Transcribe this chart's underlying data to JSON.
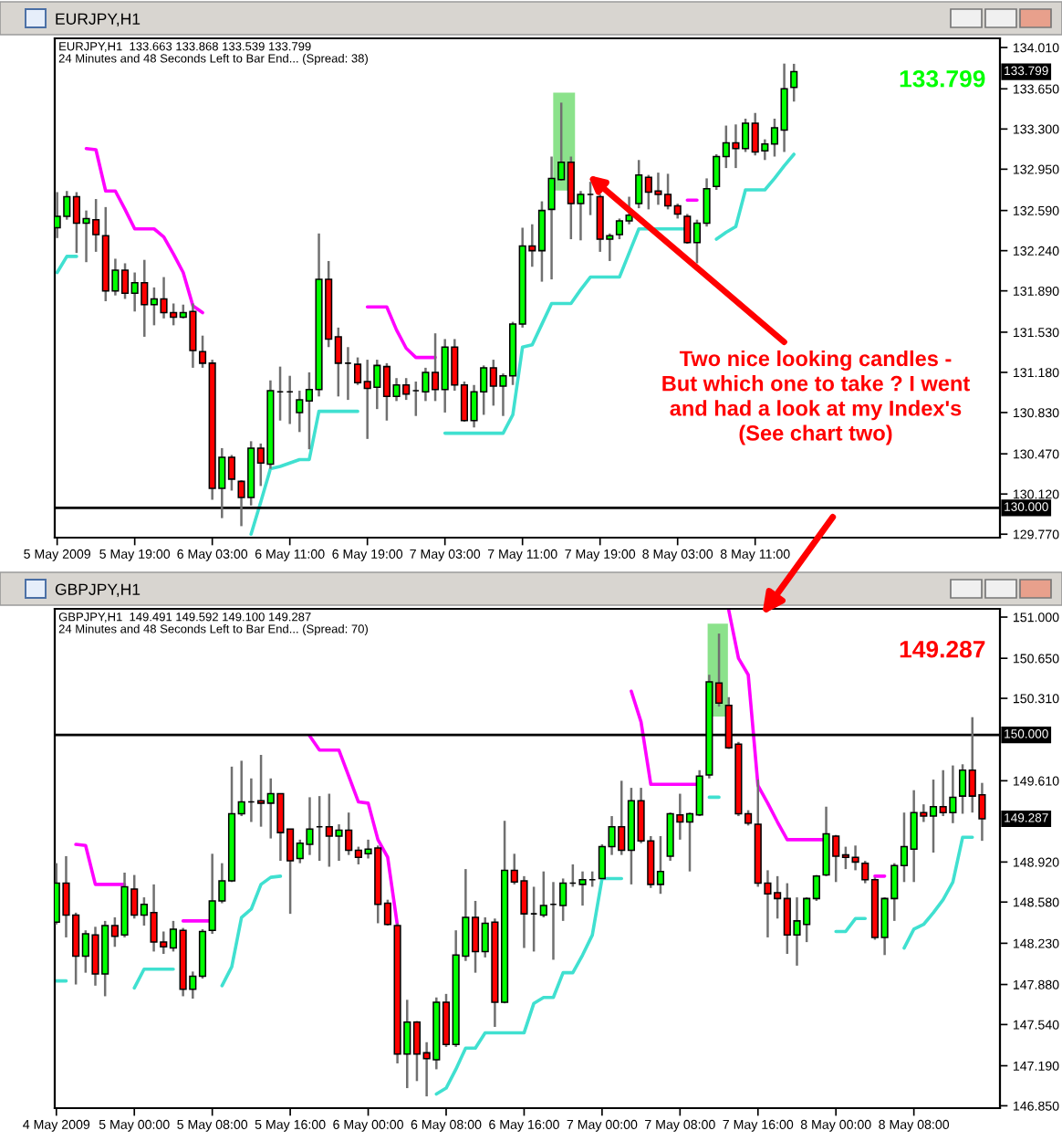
{
  "chart_data": [
    {
      "type": "candlestick",
      "title": "EURJPY,H1",
      "subtitle": "EURJPY,H1  133.663 133.868 133.539 133.799\n24 Minutes and 48 Seconds Left to Bar End... (Spread: 38)",
      "x": [
        "2009-05-05T11:00",
        "2009-05-05T12:00",
        "2009-05-05T13:00",
        "2009-05-05T14:00",
        "2009-05-05T15:00",
        "2009-05-05T16:00",
        "2009-05-05T17:00",
        "2009-05-05T18:00",
        "2009-05-05T19:00",
        "2009-05-05T20:00",
        "2009-05-05T21:00",
        "2009-05-05T22:00",
        "2009-05-05T23:00",
        "2009-05-06T00:00",
        "2009-05-06T01:00",
        "2009-05-06T02:00",
        "2009-05-06T03:00",
        "2009-05-06T04:00",
        "2009-05-06T05:00",
        "2009-05-06T06:00",
        "2009-05-06T07:00",
        "2009-05-06T08:00",
        "2009-05-06T09:00",
        "2009-05-06T10:00",
        "2009-05-06T11:00",
        "2009-05-06T12:00",
        "2009-05-06T13:00",
        "2009-05-06T14:00",
        "2009-05-06T15:00",
        "2009-05-06T16:00",
        "2009-05-06T17:00",
        "2009-05-06T18:00",
        "2009-05-06T19:00",
        "2009-05-06T20:00",
        "2009-05-06T21:00",
        "2009-05-06T22:00",
        "2009-05-06T23:00",
        "2009-05-07T00:00",
        "2009-05-07T01:00",
        "2009-05-07T02:00",
        "2009-05-07T03:00",
        "2009-05-07T04:00",
        "2009-05-07T05:00",
        "2009-05-07T06:00",
        "2009-05-07T07:00",
        "2009-05-07T08:00",
        "2009-05-07T09:00",
        "2009-05-07T10:00",
        "2009-05-07T11:00",
        "2009-05-07T12:00",
        "2009-05-07T13:00",
        "2009-05-07T14:00",
        "2009-05-07T15:00",
        "2009-05-07T16:00",
        "2009-05-07T17:00",
        "2009-05-07T18:00",
        "2009-05-07T19:00",
        "2009-05-07T20:00",
        "2009-05-07T21:00",
        "2009-05-07T22:00",
        "2009-05-07T23:00",
        "2009-05-08T00:00",
        "2009-05-08T01:00",
        "2009-05-08T02:00",
        "2009-05-08T03:00",
        "2009-05-08T04:00",
        "2009-05-08T05:00",
        "2009-05-08T06:00",
        "2009-05-08T07:00",
        "2009-05-08T08:00",
        "2009-05-08T09:00",
        "2009-05-08T10:00",
        "2009-05-08T11:00",
        "2009-05-08T12:00",
        "2009-05-08T13:00",
        "2009-05-08T14:00",
        "2009-05-08T15:00"
      ],
      "ohlc": [
        [
          132.44,
          132.75,
          132.35,
          132.54
        ],
        [
          132.54,
          132.76,
          132.51,
          132.71
        ],
        [
          132.71,
          132.75,
          132.22,
          132.48
        ],
        [
          132.48,
          132.59,
          132.14,
          132.52
        ],
        [
          132.51,
          132.69,
          132.23,
          132.38
        ],
        [
          132.37,
          132.62,
          131.8,
          131.89
        ],
        [
          131.89,
          132.17,
          131.85,
          132.07
        ],
        [
          132.07,
          132.13,
          131.82,
          131.87
        ],
        [
          131.87,
          132.05,
          131.71,
          131.96
        ],
        [
          131.96,
          132.16,
          131.49,
          131.77
        ],
        [
          131.77,
          131.92,
          131.59,
          131.82
        ],
        [
          131.82,
          132.01,
          131.65,
          131.7
        ],
        [
          131.7,
          131.78,
          131.59,
          131.66
        ],
        [
          131.66,
          131.77,
          131.65,
          131.7
        ],
        [
          131.71,
          131.78,
          131.22,
          131.37
        ],
        [
          131.36,
          131.5,
          131.22,
          131.26
        ],
        [
          131.26,
          131.29,
          130.07,
          130.17
        ],
        [
          130.17,
          130.52,
          129.91,
          130.44
        ],
        [
          130.44,
          130.46,
          130.15,
          130.25
        ],
        [
          130.23,
          130.24,
          129.84,
          130.09
        ],
        [
          130.09,
          130.58,
          130.02,
          130.52
        ],
        [
          130.52,
          130.56,
          130.19,
          130.39
        ],
        [
          130.38,
          131.11,
          130.34,
          131.02
        ],
        [
          131.01,
          131.23,
          130.76,
          131.01
        ],
        [
          131.01,
          131.15,
          130.73,
          131.01
        ],
        [
          130.83,
          131.02,
          130.66,
          130.94
        ],
        [
          130.93,
          131.18,
          130.51,
          131.03
        ],
        [
          131.03,
          132.39,
          130.97,
          131.99
        ],
        [
          131.99,
          132.15,
          131.4,
          131.47
        ],
        [
          131.49,
          131.57,
          130.97,
          131.26
        ],
        [
          131.26,
          131.4,
          130.94,
          131.26
        ],
        [
          131.25,
          131.31,
          131.07,
          131.09
        ],
        [
          131.1,
          131.29,
          130.6,
          131.04
        ],
        [
          131.05,
          131.29,
          130.86,
          131.24
        ],
        [
          131.23,
          131.26,
          130.76,
          130.97
        ],
        [
          130.97,
          131.13,
          130.93,
          131.07
        ],
        [
          131.07,
          131.13,
          130.94,
          130.99
        ],
        [
          131.02,
          131.1,
          130.8,
          131.02
        ],
        [
          131.01,
          131.22,
          130.93,
          131.18
        ],
        [
          131.18,
          131.52,
          130.93,
          131.03
        ],
        [
          131.03,
          131.47,
          130.83,
          131.4
        ],
        [
          131.4,
          131.47,
          131.02,
          131.07
        ],
        [
          131.07,
          131.1,
          130.75,
          130.76
        ],
        [
          130.76,
          131.07,
          130.7,
          131.01
        ],
        [
          131.01,
          131.24,
          130.81,
          131.22
        ],
        [
          131.22,
          131.29,
          130.89,
          131.06
        ],
        [
          131.06,
          131.17,
          130.8,
          131.15
        ],
        [
          131.15,
          131.62,
          131.07,
          131.6
        ],
        [
          131.6,
          132.44,
          131.57,
          132.28
        ],
        [
          132.28,
          132.47,
          132.1,
          132.24
        ],
        [
          132.24,
          132.67,
          131.97,
          132.59
        ],
        [
          132.6,
          133.06,
          131.99,
          132.87
        ],
        [
          132.86,
          133.53,
          132.85,
          133.01
        ],
        [
          133.01,
          133.06,
          132.34,
          132.65
        ],
        [
          132.65,
          132.76,
          132.33,
          132.73
        ],
        [
          132.73,
          132.84,
          132.55,
          132.73
        ],
        [
          132.71,
          132.73,
          132.23,
          132.34
        ],
        [
          132.34,
          132.39,
          132.15,
          132.37
        ],
        [
          132.38,
          132.52,
          132.34,
          132.5
        ],
        [
          132.5,
          132.71,
          132.47,
          132.55
        ],
        [
          132.65,
          133.03,
          132.61,
          132.9
        ],
        [
          132.88,
          132.9,
          132.6,
          132.75
        ],
        [
          132.76,
          132.92,
          132.64,
          132.73
        ],
        [
          132.73,
          132.91,
          132.6,
          132.63
        ],
        [
          132.63,
          132.65,
          132.52,
          132.56
        ],
        [
          132.54,
          132.56,
          132.3,
          132.31
        ],
        [
          132.31,
          132.51,
          132.13,
          132.48
        ],
        [
          132.48,
          132.87,
          132.45,
          132.78
        ],
        [
          132.8,
          133.08,
          132.77,
          133.06
        ],
        [
          133.06,
          133.33,
          132.96,
          133.18
        ],
        [
          133.18,
          133.34,
          132.96,
          133.13
        ],
        [
          133.13,
          133.39,
          133.1,
          133.35
        ],
        [
          133.35,
          133.44,
          133.07,
          133.1
        ],
        [
          133.11,
          133.21,
          133.03,
          133.17
        ],
        [
          133.17,
          133.39,
          133.06,
          133.31
        ],
        [
          133.29,
          133.87,
          133.1,
          133.65
        ],
        [
          133.663,
          133.868,
          133.539,
          133.799
        ]
      ],
      "colors": [
        "#00ff00",
        "#00ff00",
        "#ff0000",
        "#00ff00",
        "#ff0000",
        "#ff0000",
        "#00ff00",
        "#ff0000",
        "#00ff00",
        "#ff0000",
        "#00ff00",
        "#ff0000",
        "#ff0000",
        "#00ff00",
        "#ff0000",
        "#ff0000",
        "#ff0000",
        "#00ff00",
        "#ff0000",
        "#ff0000",
        "#00ff00",
        "#ff0000",
        "#00ff00",
        "#000000",
        "#000000",
        "#00ff00",
        "#00ff00",
        "#00ff00",
        "#ff0000",
        "#ff0000",
        "#000000",
        "#ff0000",
        "#ff0000",
        "#00ff00",
        "#ff0000",
        "#00ff00",
        "#ff0000",
        "#000000",
        "#00ff00",
        "#ff0000",
        "#00ff00",
        "#ff0000",
        "#ff0000",
        "#00ff00",
        "#00ff00",
        "#ff0000",
        "#00ff00",
        "#00ff00",
        "#00ff00",
        "#ff0000",
        "#00ff00",
        "#00ff00",
        "#00ff00",
        "#ff0000",
        "#00ff00",
        "#000000",
        "#ff0000",
        "#00ff00",
        "#00ff00",
        "#00ff00",
        "#00ff00",
        "#ff0000",
        "#ff0000",
        "#ff0000",
        "#ff0000",
        "#ff0000",
        "#00ff00",
        "#00ff00",
        "#00ff00",
        "#00ff00",
        "#ff0000",
        "#00ff00",
        "#ff0000",
        "#00ff00",
        "#00ff00",
        "#00ff00",
        "#00ff00"
      ],
      "series": [
        {
          "type": "line",
          "color": "#ff00ff",
          "values": [
            null,
            null,
            null,
            133.13,
            133.12,
            132.76,
            132.76,
            132.6,
            132.43,
            132.43,
            132.43,
            132.36,
            132.21,
            132.05,
            131.76,
            131.7,
            null,
            null,
            null,
            null,
            null,
            null,
            null,
            null,
            null,
            null,
            null,
            null,
            null,
            null,
            null,
            null,
            131.75,
            131.75,
            131.75,
            131.55,
            131.39,
            131.31,
            131.31,
            131.31,
            null,
            null,
            null,
            null,
            null,
            null,
            null,
            null,
            null,
            null,
            null,
            null,
            null,
            null,
            null,
            null,
            null,
            null,
            null,
            null,
            null,
            null,
            null,
            null,
            null,
            132.68,
            132.68,
            null,
            null,
            null,
            null,
            null,
            null,
            null,
            null,
            null,
            null
          ]
        },
        {
          "type": "line",
          "color": "#40e0d0",
          "values": [
            132.05,
            132.19,
            132.19,
            null,
            null,
            null,
            null,
            null,
            null,
            null,
            null,
            null,
            null,
            null,
            null,
            null,
            null,
            null,
            null,
            null,
            129.77,
            130.05,
            130.34,
            130.36,
            130.39,
            130.42,
            130.42,
            130.84,
            130.84,
            130.84,
            130.84,
            130.84,
            null,
            null,
            null,
            null,
            null,
            null,
            null,
            null,
            130.65,
            130.65,
            130.65,
            130.65,
            130.65,
            130.65,
            130.65,
            130.81,
            131.4,
            131.42,
            131.6,
            131.78,
            131.78,
            131.78,
            131.9,
            132.01,
            132.01,
            132.01,
            132.01,
            132.22,
            132.43,
            132.43,
            132.43,
            132.43,
            132.43,
            132.43,
            null,
            null,
            132.34,
            132.4,
            132.45,
            132.77,
            132.77,
            132.77,
            132.87,
            132.98,
            133.08
          ]
        }
      ],
      "xlim": [
        "2009-05-05T10:45",
        "2009-05-09T12:15"
      ],
      "xticks": [
        {
          "value": "2009-05-05T11:00",
          "label": "5 May 2009"
        },
        {
          "value": "2009-05-05T19:00",
          "label": "5 May 19:00"
        },
        {
          "value": "2009-05-06T03:00",
          "label": "6 May 03:00"
        },
        {
          "value": "2009-05-06T11:00",
          "label": "6 May 11:00"
        },
        {
          "value": "2009-05-06T19:00",
          "label": "6 May 19:00"
        },
        {
          "value": "2009-05-07T03:00",
          "label": "7 May 03:00"
        },
        {
          "value": "2009-05-07T11:00",
          "label": "7 May 11:00"
        },
        {
          "value": "2009-05-07T19:00",
          "label": "7 May 19:00"
        },
        {
          "value": "2009-05-08T03:00",
          "label": "8 May 03:00"
        },
        {
          "value": "2009-05-08T11:00",
          "label": "8 May 11:00"
        }
      ],
      "ylim": [
        129.74,
        134.09
      ],
      "yticks": [
        {
          "value": 134.01,
          "label": "134.010"
        },
        {
          "value": 133.65,
          "label": "133.650"
        },
        {
          "value": 133.3,
          "label": "133.300"
        },
        {
          "value": 132.95,
          "label": "132.950"
        },
        {
          "value": 132.59,
          "label": "132.590"
        },
        {
          "value": 132.24,
          "label": "132.240"
        },
        {
          "value": 131.89,
          "label": "131.890"
        },
        {
          "value": 131.53,
          "label": "131.530"
        },
        {
          "value": 131.18,
          "label": "131.180"
        },
        {
          "value": 130.83,
          "label": "130.830"
        },
        {
          "value": 130.47,
          "label": "130.470"
        },
        {
          "value": 130.12,
          "label": "130.120"
        },
        {
          "value": 129.77,
          "label": "129.770"
        }
      ],
      "ref_lines": [
        {
          "axis": "y",
          "value": 130.0,
          "label": "130.000",
          "color": "#000000"
        }
      ],
      "bands": [
        {
          "axis": "x",
          "from": "2009-05-07T14:10",
          "to": "2009-05-07T16:25",
          "color": "#77dd77"
        }
      ],
      "annotations": [
        "133.799",
        "133.799",
        {
          "text": "Two nice looking candles -\nBut which one to take ? I went\nand had a look at my Index's\n(See chart two)",
          "x": "2009-05-07T17:45",
          "y": 132.9
        }
      ]
    },
    {
      "type": "candlestick",
      "title": "GBPJPY,H1",
      "subtitle": "GBPJPY,H1  149.491 149.592 149.100 149.287\n24 Minutes and 48 Seconds Left to Bar End... (Spread: 70)",
      "x": [
        "2009-05-04T16:00",
        "2009-05-04T17:00",
        "2009-05-04T18:00",
        "2009-05-04T19:00",
        "2009-05-04T20:00",
        "2009-05-04T21:00",
        "2009-05-04T22:00",
        "2009-05-04T23:00",
        "2009-05-05T00:00",
        "2009-05-05T01:00",
        "2009-05-05T02:00",
        "2009-05-05T03:00",
        "2009-05-05T04:00",
        "2009-05-05T05:00",
        "2009-05-05T06:00",
        "2009-05-05T07:00",
        "2009-05-05T08:00",
        "2009-05-05T09:00",
        "2009-05-05T10:00",
        "2009-05-05T11:00",
        "2009-05-05T12:00",
        "2009-05-05T13:00",
        "2009-05-05T14:00",
        "2009-05-05T15:00",
        "2009-05-05T16:00",
        "2009-05-05T17:00",
        "2009-05-05T18:00",
        "2009-05-05T19:00",
        "2009-05-05T20:00",
        "2009-05-05T21:00",
        "2009-05-05T22:00",
        "2009-05-05T23:00",
        "2009-05-06T00:00",
        "2009-05-06T01:00",
        "2009-05-06T02:00",
        "2009-05-06T03:00",
        "2009-05-06T04:00",
        "2009-05-06T05:00",
        "2009-05-06T06:00",
        "2009-05-06T07:00",
        "2009-05-06T08:00",
        "2009-05-06T09:00",
        "2009-05-06T10:00",
        "2009-05-06T11:00",
        "2009-05-06T12:00",
        "2009-05-06T13:00",
        "2009-05-06T14:00",
        "2009-05-06T15:00",
        "2009-05-06T16:00",
        "2009-05-06T17:00",
        "2009-05-06T18:00",
        "2009-05-06T19:00",
        "2009-05-06T20:00",
        "2009-05-06T21:00",
        "2009-05-06T22:00",
        "2009-05-06T23:00",
        "2009-05-07T00:00",
        "2009-05-07T01:00",
        "2009-05-07T02:00",
        "2009-05-07T03:00",
        "2009-05-07T04:00",
        "2009-05-07T05:00",
        "2009-05-07T06:00",
        "2009-05-07T07:00",
        "2009-05-07T08:00",
        "2009-05-07T09:00",
        "2009-05-07T10:00",
        "2009-05-07T11:00",
        "2009-05-07T12:00",
        "2009-05-07T13:00",
        "2009-05-07T14:00",
        "2009-05-07T15:00",
        "2009-05-07T16:00",
        "2009-05-07T17:00",
        "2009-05-07T18:00",
        "2009-05-07T19:00",
        "2009-05-07T20:00",
        "2009-05-07T21:00",
        "2009-05-07T22:00",
        "2009-05-07T23:00",
        "2009-05-08T00:00",
        "2009-05-08T01:00",
        "2009-05-08T02:00",
        "2009-05-08T03:00",
        "2009-05-08T04:00",
        "2009-05-08T05:00",
        "2009-05-08T06:00",
        "2009-05-08T07:00",
        "2009-05-08T08:00",
        "2009-05-08T09:00",
        "2009-05-08T10:00",
        "2009-05-08T11:00",
        "2009-05-08T12:00",
        "2009-05-08T13:00",
        "2009-05-08T14:00",
        "2009-05-08T15:00"
      ],
      "ohlc": [
        [
          148.41,
          148.91,
          148.39,
          148.74
        ],
        [
          148.74,
          148.97,
          148.28,
          148.47
        ],
        [
          148.47,
          148.49,
          147.88,
          148.12
        ],
        [
          148.12,
          148.34,
          147.98,
          148.31
        ],
        [
          148.3,
          148.37,
          147.87,
          147.97
        ],
        [
          147.97,
          148.42,
          147.78,
          148.38
        ],
        [
          148.38,
          148.45,
          148.2,
          148.29
        ],
        [
          148.3,
          148.83,
          148.28,
          148.71
        ],
        [
          148.69,
          148.81,
          148.44,
          148.47
        ],
        [
          148.47,
          148.62,
          148.38,
          148.56
        ],
        [
          148.49,
          148.73,
          148.16,
          148.24
        ],
        [
          148.24,
          148.33,
          148.14,
          148.2
        ],
        [
          148.19,
          148.42,
          148.16,
          148.35
        ],
        [
          148.34,
          148.36,
          147.78,
          147.84
        ],
        [
          147.84,
          147.99,
          147.76,
          147.95
        ],
        [
          147.95,
          148.35,
          147.93,
          148.33
        ],
        [
          148.34,
          148.99,
          148.31,
          148.59
        ],
        [
          148.59,
          148.91,
          148.57,
          148.76
        ],
        [
          148.76,
          149.73,
          148.75,
          149.33
        ],
        [
          149.33,
          149.78,
          149.31,
          149.43
        ],
        [
          149.43,
          149.63,
          149.26,
          149.43
        ],
        [
          149.44,
          149.83,
          149.22,
          149.42
        ],
        [
          149.42,
          149.63,
          149.12,
          149.5
        ],
        [
          149.5,
          149.5,
          148.93,
          149.17
        ],
        [
          149.2,
          149.2,
          148.48,
          148.93
        ],
        [
          148.95,
          149.11,
          148.91,
          149.08
        ],
        [
          149.07,
          149.47,
          148.98,
          149.2
        ],
        [
          149.22,
          149.48,
          148.93,
          149.22
        ],
        [
          149.22,
          149.5,
          148.88,
          149.14
        ],
        [
          149.14,
          149.24,
          148.93,
          149.19
        ],
        [
          149.19,
          149.34,
          148.98,
          149.02
        ],
        [
          149.02,
          149.05,
          148.9,
          148.96
        ],
        [
          148.99,
          149.11,
          148.95,
          149.03
        ],
        [
          149.04,
          149.06,
          148.4,
          148.56
        ],
        [
          148.57,
          148.6,
          148.38,
          148.39
        ],
        [
          148.38,
          148.4,
          147.21,
          147.29
        ],
        [
          147.29,
          147.75,
          147.0,
          147.56
        ],
        [
          147.56,
          147.57,
          147.06,
          147.29
        ],
        [
          147.3,
          147.39,
          146.93,
          147.25
        ],
        [
          147.24,
          147.77,
          147.16,
          147.73
        ],
        [
          147.73,
          147.8,
          147.35,
          147.37
        ],
        [
          147.37,
          148.34,
          147.35,
          148.13
        ],
        [
          148.12,
          148.86,
          148.08,
          148.45
        ],
        [
          148.45,
          148.59,
          147.98,
          148.16
        ],
        [
          148.16,
          148.45,
          148.11,
          148.4
        ],
        [
          148.41,
          148.44,
          147.52,
          147.73
        ],
        [
          147.73,
          149.27,
          147.72,
          148.85
        ],
        [
          148.85,
          148.99,
          148.73,
          148.75
        ],
        [
          148.76,
          148.8,
          148.19,
          148.48
        ],
        [
          148.48,
          148.71,
          148.16,
          148.48
        ],
        [
          148.47,
          148.84,
          148.45,
          148.55
        ],
        [
          148.56,
          148.75,
          148.09,
          148.56
        ],
        [
          148.55,
          148.78,
          148.42,
          148.74
        ],
        [
          148.74,
          148.9,
          148.71,
          148.74
        ],
        [
          148.73,
          148.84,
          148.55,
          148.77
        ],
        [
          148.77,
          148.84,
          148.71,
          148.77
        ],
        [
          148.78,
          149.07,
          148.78,
          149.05
        ],
        [
          149.05,
          149.31,
          148.98,
          149.22
        ],
        [
          149.22,
          149.61,
          148.98,
          149.02
        ],
        [
          149.02,
          149.55,
          148.73,
          149.44
        ],
        [
          149.44,
          149.55,
          149.08,
          149.1
        ],
        [
          149.1,
          149.14,
          148.7,
          148.73
        ],
        [
          148.73,
          149.14,
          148.65,
          148.84
        ],
        [
          148.97,
          149.34,
          148.93,
          149.33
        ],
        [
          149.32,
          149.5,
          149.11,
          149.26
        ],
        [
          149.26,
          149.34,
          148.84,
          149.33
        ],
        [
          149.32,
          149.7,
          149.31,
          149.65
        ],
        [
          149.66,
          150.51,
          149.63,
          150.45
        ],
        [
          150.44,
          150.86,
          150.24,
          150.27
        ],
        [
          150.25,
          150.32,
          149.88,
          149.89
        ],
        [
          149.92,
          149.94,
          149.31,
          149.33
        ],
        [
          149.33,
          149.36,
          149.23,
          149.25
        ],
        [
          149.24,
          149.62,
          148.71,
          148.74
        ],
        [
          148.74,
          148.85,
          148.28,
          148.65
        ],
        [
          148.66,
          148.8,
          148.44,
          148.61
        ],
        [
          148.61,
          148.74,
          148.14,
          148.3
        ],
        [
          148.3,
          148.62,
          148.04,
          148.42
        ],
        [
          148.39,
          148.62,
          148.24,
          148.61
        ],
        [
          148.61,
          148.81,
          148.59,
          148.8
        ],
        [
          148.81,
          149.39,
          148.8,
          149.16
        ],
        [
          149.14,
          149.15,
          148.75,
          148.97
        ],
        [
          148.98,
          149.05,
          148.86,
          148.96
        ],
        [
          148.96,
          149.06,
          148.85,
          148.92
        ],
        [
          148.91,
          148.93,
          148.74,
          148.77
        ],
        [
          148.77,
          148.79,
          148.26,
          148.28
        ],
        [
          148.28,
          148.62,
          148.13,
          148.61
        ],
        [
          148.61,
          148.91,
          148.42,
          148.89
        ],
        [
          148.89,
          149.34,
          148.75,
          149.05
        ],
        [
          149.03,
          149.53,
          148.75,
          149.34
        ],
        [
          149.34,
          149.41,
          149.26,
          149.31
        ],
        [
          149.31,
          149.62,
          149.0,
          149.39
        ],
        [
          149.39,
          149.7,
          149.31,
          149.34
        ],
        [
          149.34,
          149.74,
          149.25,
          149.47
        ],
        [
          149.48,
          149.75,
          149.33,
          149.7
        ],
        [
          149.7,
          150.15,
          149.34,
          149.48
        ],
        [
          149.491,
          149.592,
          149.1,
          149.287
        ]
      ],
      "colors": [
        "#00ff00",
        "#ff0000",
        "#ff0000",
        "#00ff00",
        "#ff0000",
        "#00ff00",
        "#ff0000",
        "#00ff00",
        "#ff0000",
        "#00ff00",
        "#ff0000",
        "#ff0000",
        "#00ff00",
        "#ff0000",
        "#00ff00",
        "#00ff00",
        "#00ff00",
        "#00ff00",
        "#00ff00",
        "#00ff00",
        "#000000",
        "#ff0000",
        "#00ff00",
        "#ff0000",
        "#ff0000",
        "#00ff00",
        "#00ff00",
        "#000000",
        "#ff0000",
        "#00ff00",
        "#ff0000",
        "#ff0000",
        "#00ff00",
        "#ff0000",
        "#ff0000",
        "#ff0000",
        "#00ff00",
        "#ff0000",
        "#ff0000",
        "#00ff00",
        "#ff0000",
        "#00ff00",
        "#00ff00",
        "#ff0000",
        "#00ff00",
        "#ff0000",
        "#00ff00",
        "#ff0000",
        "#ff0000",
        "#000000",
        "#00ff00",
        "#000000",
        "#00ff00",
        "#000000",
        "#00ff00",
        "#000000",
        "#00ff00",
        "#00ff00",
        "#ff0000",
        "#00ff00",
        "#ff0000",
        "#ff0000",
        "#00ff00",
        "#00ff00",
        "#ff0000",
        "#00ff00",
        "#00ff00",
        "#00ff00",
        "#ff0000",
        "#ff0000",
        "#ff0000",
        "#ff0000",
        "#ff0000",
        "#ff0000",
        "#ff0000",
        "#ff0000",
        "#00ff00",
        "#00ff00",
        "#00ff00",
        "#00ff00",
        "#ff0000",
        "#ff0000",
        "#ff0000",
        "#ff0000",
        "#ff0000",
        "#00ff00",
        "#00ff00",
        "#00ff00",
        "#00ff00",
        "#ff0000",
        "#00ff00",
        "#ff0000",
        "#00ff00",
        "#00ff00",
        "#ff0000",
        "#ff0000"
      ],
      "series": [
        {
          "type": "line",
          "color": "#ff00ff",
          "values": [
            null,
            null,
            149.07,
            149.06,
            148.73,
            148.73,
            148.73,
            148.73,
            null,
            null,
            null,
            null,
            null,
            148.42,
            148.42,
            148.42,
            148.42,
            null,
            null,
            null,
            null,
            null,
            null,
            null,
            null,
            null,
            149.99,
            149.87,
            149.87,
            149.87,
            149.65,
            149.43,
            149.42,
            149.11,
            148.96,
            148.38,
            null,
            null,
            null,
            null,
            null,
            null,
            null,
            null,
            null,
            null,
            null,
            null,
            null,
            null,
            null,
            null,
            null,
            null,
            null,
            null,
            null,
            null,
            null,
            150.37,
            150.11,
            149.58,
            149.58,
            149.58,
            149.58,
            149.58,
            149.58,
            null,
            null,
            151.06,
            150.65,
            150.51,
            149.57,
            149.42,
            149.26,
            149.11,
            149.11,
            149.11,
            149.11,
            149.11,
            null,
            null,
            null,
            null,
            148.8,
            148.8,
            null,
            null,
            null,
            null,
            null,
            null,
            null,
            null,
            null,
            null
          ]
        },
        {
          "type": "line",
          "color": "#40e0d0",
          "values": [
            147.91,
            147.91,
            null,
            null,
            null,
            null,
            null,
            null,
            147.85,
            148.01,
            148.01,
            148.01,
            148.01,
            null,
            null,
            null,
            null,
            147.87,
            148.03,
            148.45,
            148.52,
            148.73,
            148.79,
            148.8,
            null,
            null,
            null,
            null,
            null,
            null,
            null,
            null,
            null,
            null,
            null,
            null,
            null,
            null,
            null,
            146.95,
            147.0,
            147.16,
            147.34,
            147.34,
            147.47,
            147.47,
            147.47,
            147.47,
            147.47,
            147.72,
            147.77,
            147.77,
            147.98,
            147.98,
            148.13,
            148.3,
            148.78,
            148.78,
            148.78,
            null,
            null,
            null,
            null,
            null,
            null,
            null,
            null,
            149.47,
            149.47,
            null,
            null,
            null,
            null,
            null,
            null,
            null,
            null,
            null,
            null,
            null,
            148.33,
            148.33,
            148.44,
            148.44,
            null,
            null,
            null,
            148.19,
            148.35,
            148.39,
            148.49,
            148.6,
            148.75,
            149.13,
            149.13,
            null
          ]
        }
      ],
      "xlim": [
        "2009-05-04T15:50",
        "2009-05-08T16:50"
      ],
      "xticks": [
        {
          "value": "2009-05-04T16:00",
          "label": "4 May 2009"
        },
        {
          "value": "2009-05-05T00:00",
          "label": "5 May 00:00"
        },
        {
          "value": "2009-05-05T08:00",
          "label": "5 May 08:00"
        },
        {
          "value": "2009-05-05T16:00",
          "label": "5 May 16:00"
        },
        {
          "value": "2009-05-06T00:00",
          "label": "6 May 00:00"
        },
        {
          "value": "2009-05-06T08:00",
          "label": "6 May 08:00"
        },
        {
          "value": "2009-05-06T16:00",
          "label": "6 May 16:00"
        },
        {
          "value": "2009-05-07T00:00",
          "label": "7 May 00:00"
        },
        {
          "value": "2009-05-07T08:00",
          "label": "7 May 08:00"
        },
        {
          "value": "2009-05-07T16:00",
          "label": "7 May 16:00"
        },
        {
          "value": "2009-05-08T00:00",
          "label": "8 May 00:00"
        },
        {
          "value": "2009-05-08T08:00",
          "label": "8 May 08:00"
        }
      ],
      "ylim": [
        146.83,
        151.07
      ],
      "yticks": [
        {
          "value": 151.0,
          "label": "151.000"
        },
        {
          "value": 150.65,
          "label": "150.650"
        },
        {
          "value": 150.31,
          "label": "150.310"
        },
        {
          "value": 149.61,
          "label": "149.610"
        },
        {
          "value": 148.92,
          "label": "148.920"
        },
        {
          "value": 148.58,
          "label": "148.580"
        },
        {
          "value": 148.23,
          "label": "148.230"
        },
        {
          "value": 147.88,
          "label": "147.880"
        },
        {
          "value": 147.54,
          "label": "147.540"
        },
        {
          "value": 147.19,
          "label": "147.190"
        },
        {
          "value": 146.85,
          "label": "146.850"
        }
      ],
      "ref_lines": [
        {
          "axis": "y",
          "value": 150.0,
          "label": "150.000",
          "color": "#000000"
        }
      ],
      "bands": [
        {
          "axis": "x",
          "from": "2009-05-07T10:50",
          "to": "2009-05-07T12:55",
          "color": "#77dd77"
        }
      ],
      "annotations": [
        "149.287",
        "149.287"
      ]
    }
  ]
}
